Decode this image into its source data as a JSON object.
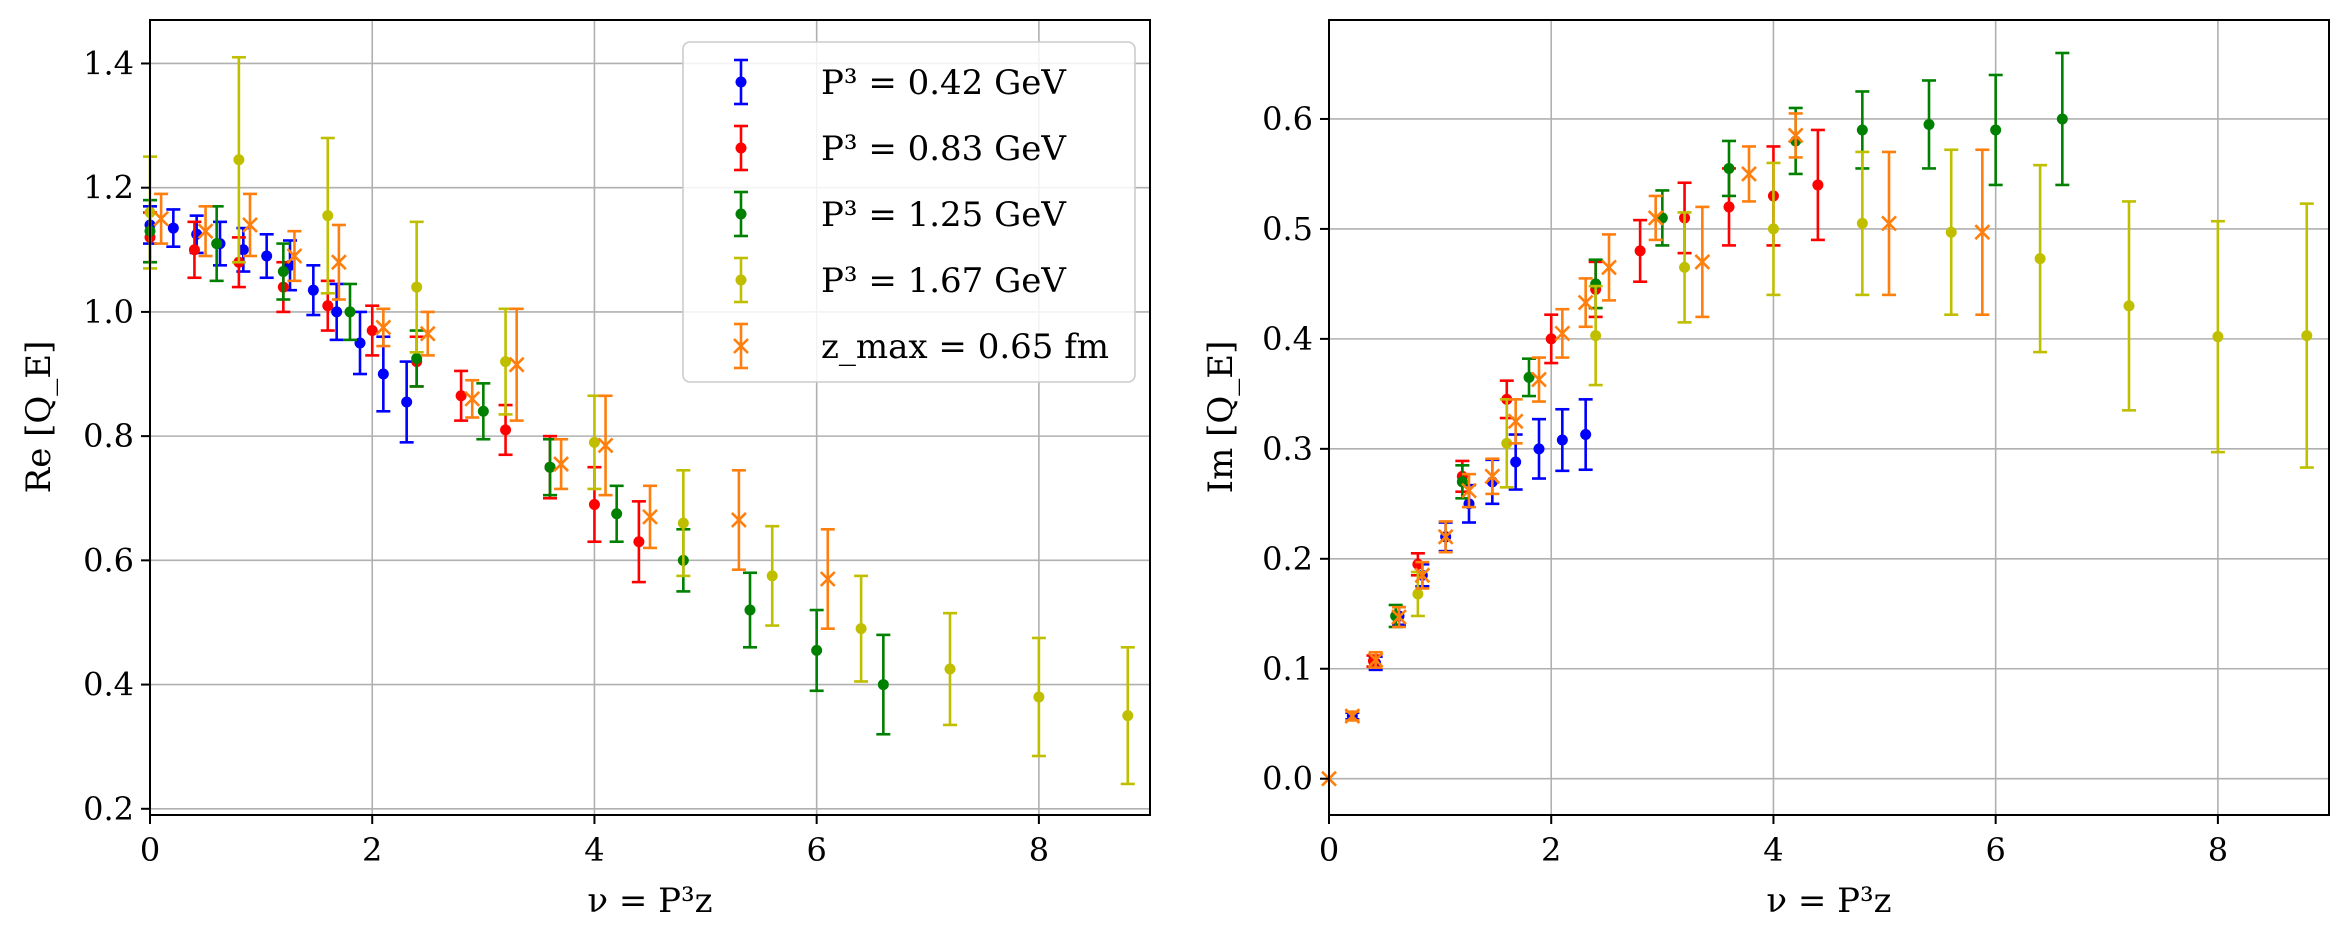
{
  "chart_data": [
    {
      "type": "scatter",
      "title": "",
      "xlabel": "ν = P³z",
      "ylabel": "Re [Q_E]",
      "xlim": [
        0,
        9
      ],
      "ylim": [
        0.19,
        1.47
      ],
      "xticks": [
        0,
        2,
        4,
        6,
        8
      ],
      "yticks": [
        0.2,
        0.4,
        0.6,
        0.8,
        1.0,
        1.2,
        1.4
      ],
      "xtick_labels": [
        "0",
        "2",
        "4",
        "6",
        "8"
      ],
      "ytick_labels": [
        "0.2",
        "0.4",
        "0.6",
        "0.8",
        "1.0",
        "1.2",
        "1.4"
      ],
      "grid": true,
      "legend_position": "top-right",
      "series": [
        {
          "name": "P³ = 0.42 GeV",
          "color": "#0000ff",
          "marker": "dot",
          "x": [
            0.0,
            0.21,
            0.42,
            0.63,
            0.84,
            1.05,
            1.26,
            1.47,
            1.68,
            1.89,
            2.1,
            2.31
          ],
          "y": [
            1.14,
            1.135,
            1.125,
            1.11,
            1.1,
            1.09,
            1.075,
            1.035,
            1.0,
            0.95,
            0.9,
            0.855
          ],
          "err": [
            0.03,
            0.03,
            0.03,
            0.035,
            0.035,
            0.035,
            0.04,
            0.04,
            0.045,
            0.05,
            0.06,
            0.065
          ]
        },
        {
          "name": "P³ = 0.83 GeV",
          "color": "#ff0000",
          "marker": "dot",
          "x": [
            0.0,
            0.4,
            0.8,
            1.2,
            1.6,
            2.0,
            2.4,
            2.8,
            3.2,
            3.6,
            4.0,
            4.4
          ],
          "y": [
            1.12,
            1.1,
            1.08,
            1.04,
            1.01,
            0.97,
            0.92,
            0.865,
            0.81,
            0.75,
            0.69,
            0.63
          ],
          "err": [
            0.04,
            0.045,
            0.04,
            0.04,
            0.04,
            0.04,
            0.04,
            0.04,
            0.04,
            0.05,
            0.06,
            0.065
          ]
        },
        {
          "name": "P³ = 1.25 GeV",
          "color": "#008000",
          "marker": "dot",
          "x": [
            0.0,
            0.6,
            1.2,
            1.8,
            2.4,
            3.0,
            3.6,
            4.2,
            4.8,
            5.4,
            6.0,
            6.6
          ],
          "y": [
            1.13,
            1.11,
            1.065,
            1.0,
            0.925,
            0.84,
            0.75,
            0.675,
            0.6,
            0.52,
            0.455,
            0.4
          ],
          "err": [
            0.05,
            0.06,
            0.045,
            0.045,
            0.045,
            0.045,
            0.045,
            0.045,
            0.05,
            0.06,
            0.065,
            0.08
          ]
        },
        {
          "name": "P³ = 1.67 GeV",
          "color": "#bfbf00",
          "marker": "dot",
          "x": [
            0.0,
            0.8,
            1.6,
            2.4,
            3.2,
            4.0,
            4.8,
            5.6,
            6.4,
            7.2,
            8.0,
            8.8
          ],
          "y": [
            1.16,
            1.245,
            1.155,
            1.04,
            0.92,
            0.79,
            0.66,
            0.575,
            0.49,
            0.425,
            0.38,
            0.35
          ],
          "err": [
            0.09,
            0.165,
            0.125,
            0.105,
            0.085,
            0.075,
            0.085,
            0.08,
            0.085,
            0.09,
            0.095,
            0.11
          ]
        },
        {
          "name": "z_max = 0.65 fm",
          "color": "#ff7f0e",
          "marker": "x",
          "x": [
            0.1,
            0.5,
            0.9,
            1.3,
            1.7,
            2.1,
            2.5,
            2.9,
            3.3,
            3.7,
            4.1,
            4.5,
            5.3,
            6.1
          ],
          "y": [
            1.15,
            1.13,
            1.14,
            1.09,
            1.08,
            0.975,
            0.965,
            0.86,
            0.915,
            0.755,
            0.785,
            0.67,
            0.665,
            0.57
          ],
          "err": [
            0.04,
            0.04,
            0.05,
            0.04,
            0.06,
            0.03,
            0.035,
            0.03,
            0.09,
            0.04,
            0.08,
            0.05,
            0.08,
            0.08
          ]
        }
      ]
    },
    {
      "type": "scatter",
      "title": "",
      "xlabel": "ν = P³z",
      "ylabel": "Im [Q_E]",
      "xlim": [
        0,
        9
      ],
      "ylim": [
        -0.033,
        0.69
      ],
      "xticks": [
        0,
        2,
        4,
        6,
        8
      ],
      "yticks": [
        0.0,
        0.1,
        0.2,
        0.3,
        0.4,
        0.5,
        0.6
      ],
      "xtick_labels": [
        "0",
        "2",
        "4",
        "6",
        "8"
      ],
      "ytick_labels": [
        "0.0",
        "0.1",
        "0.2",
        "0.3",
        "0.4",
        "0.5",
        "0.6"
      ],
      "grid": true,
      "legend_position": "none",
      "series": [
        {
          "name": "P³ = 0.42 GeV",
          "color": "#0000ff",
          "marker": "dot",
          "x": [
            0.21,
            0.42,
            0.63,
            0.84,
            1.05,
            1.26,
            1.47,
            1.68,
            1.89,
            2.1,
            2.31
          ],
          "y": [
            0.057,
            0.105,
            0.148,
            0.185,
            0.22,
            0.25,
            0.27,
            0.288,
            0.3,
            0.308,
            0.313
          ],
          "err": [
            0.003,
            0.006,
            0.008,
            0.01,
            0.013,
            0.017,
            0.02,
            0.025,
            0.027,
            0.028,
            0.032
          ]
        },
        {
          "name": "P³ = 0.83 GeV",
          "color": "#ff0000",
          "marker": "dot",
          "x": [
            0.4,
            0.8,
            1.2,
            1.6,
            2.0,
            2.4,
            2.8,
            3.2,
            3.6,
            4.0,
            4.4
          ],
          "y": [
            0.107,
            0.195,
            0.275,
            0.345,
            0.4,
            0.445,
            0.48,
            0.51,
            0.52,
            0.53,
            0.54
          ],
          "err": [
            0.005,
            0.01,
            0.014,
            0.017,
            0.022,
            0.025,
            0.028,
            0.032,
            0.035,
            0.045,
            0.05
          ]
        },
        {
          "name": "P³ = 1.25 GeV",
          "color": "#008000",
          "marker": "dot",
          "x": [
            0.6,
            1.2,
            1.8,
            2.4,
            3.0,
            3.6,
            4.2,
            4.8,
            5.4,
            6.0,
            6.6
          ],
          "y": [
            0.148,
            0.27,
            0.365,
            0.45,
            0.51,
            0.555,
            0.58,
            0.59,
            0.595,
            0.59,
            0.6
          ],
          "err": [
            0.01,
            0.015,
            0.017,
            0.022,
            0.025,
            0.025,
            0.03,
            0.035,
            0.04,
            0.05,
            0.06
          ]
        },
        {
          "name": "P³ = 1.67 GeV",
          "color": "#bfbf00",
          "marker": "dot",
          "x": [
            0.8,
            1.6,
            2.4,
            3.2,
            4.0,
            4.8,
            5.6,
            6.4,
            7.2,
            8.0,
            8.8
          ],
          "y": [
            0.168,
            0.305,
            0.403,
            0.465,
            0.5,
            0.505,
            0.497,
            0.473,
            0.43,
            0.402,
            0.403
          ],
          "err": [
            0.02,
            0.04,
            0.045,
            0.05,
            0.06,
            0.065,
            0.075,
            0.085,
            0.095,
            0.105,
            0.12
          ]
        },
        {
          "name": "z_max = 0.65 fm",
          "color": "#ff7f0e",
          "marker": "x",
          "x": [
            0.0,
            0.21,
            0.42,
            0.63,
            0.84,
            1.05,
            1.26,
            1.47,
            1.68,
            1.89,
            2.1,
            2.31,
            2.52,
            2.94,
            3.36,
            3.78,
            4.2,
            5.04,
            5.88
          ],
          "y": [
            0.0,
            0.057,
            0.108,
            0.147,
            0.185,
            0.22,
            0.262,
            0.275,
            0.325,
            0.363,
            0.405,
            0.433,
            0.465,
            0.51,
            0.47,
            0.55,
            0.585,
            0.505,
            0.497
          ],
          "err": [
            0.0,
            0.004,
            0.007,
            0.009,
            0.012,
            0.014,
            0.015,
            0.016,
            0.02,
            0.02,
            0.022,
            0.022,
            0.03,
            0.02,
            0.05,
            0.025,
            0.02,
            0.065,
            0.075
          ]
        }
      ]
    }
  ]
}
